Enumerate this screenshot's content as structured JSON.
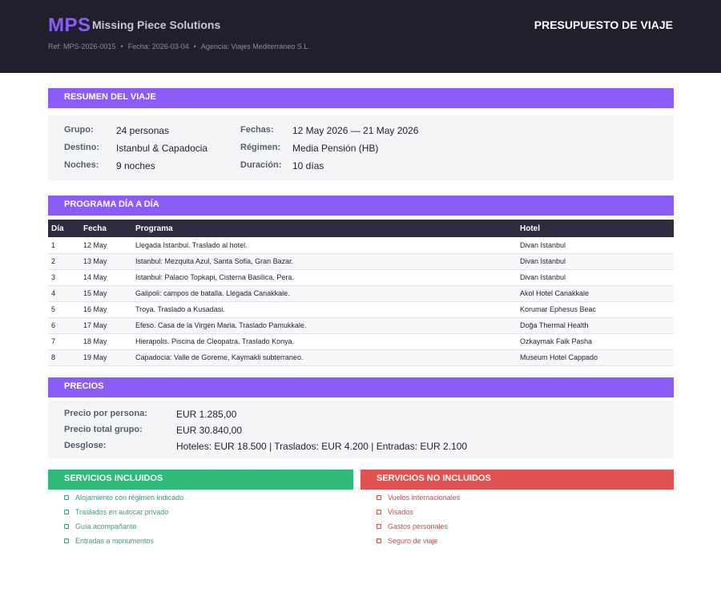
{
  "header": {
    "logo": "MPS",
    "company": "Missing Piece Solutions",
    "title": "PRESUPUESTO DE VIAJE",
    "ref": "Ref: MPS-2026-0015",
    "fecha": "Fecha: 2026-03-04",
    "agencia": "Agencia: Viajes Mediterráneo S.L.",
    "separator": "•"
  },
  "resumen": {
    "heading": "RESUMEN DEL VIAJE",
    "fields": [
      {
        "label": "Grupo:",
        "value": "24 personas"
      },
      {
        "label": "Destino:",
        "value": "Istanbul & Capadocia"
      },
      {
        "label": "Noches:",
        "value": "9 noches"
      },
      {
        "label": "Fechas:",
        "value": "12 May 2026 — 21 May 2026"
      },
      {
        "label": "Régimen:",
        "value": "Media Pensión (HB)"
      },
      {
        "label": "Duración:",
        "value": "10 días"
      }
    ]
  },
  "programa": {
    "heading": "PROGRAMA DÍA A DÍA",
    "columns": [
      "Día",
      "Fecha",
      "Programa",
      "Hotel"
    ],
    "rows": [
      [
        "1",
        "12 May",
        "Llegada Istanbul. Traslado al hotel.",
        "Divan Istanbul"
      ],
      [
        "2",
        "13 May",
        "Istanbul: Mezquita Azul, Santa Sofia, Gran Bazar.",
        "Divan Istanbul"
      ],
      [
        "3",
        "14 May",
        "Istanbul: Palacio Topkapi, Cisterna Basilica, Pera.",
        "Divan Istanbul"
      ],
      [
        "4",
        "15 May",
        "Galipoli: campos de batalla. Llegada Canakkale.",
        "Akol Hotel Canakkale"
      ],
      [
        "5",
        "16 May",
        "Troya. Traslado a Kusadasi.",
        "Korumar Ephesus Beac"
      ],
      [
        "6",
        "17 May",
        "Efeso. Casa de la Virgen Maria. Traslado Pamukkale.",
        "Doğa Thermal Health"
      ],
      [
        "7",
        "18 May",
        "Hierapolis. Piscina de Cleopatra. Traslado Konya.",
        "Ozkaymak Faik Pasha"
      ],
      [
        "8",
        "19 May",
        "Capadocia: Valle de Goreme, Kaymakli subterraneo.",
        "Museum Hotel Cappado"
      ]
    ]
  },
  "precios": {
    "heading": "PRECIOS",
    "fields": [
      {
        "label": "Precio por persona:",
        "value": "EUR 1.285,00"
      },
      {
        "label": "Precio total grupo:",
        "value": "EUR 30.840,00"
      },
      {
        "label": "Desglose:",
        "value": "Hoteles: EUR 18.500 | Traslados: EUR 4.200 | Entradas: EUR 2.100"
      }
    ]
  },
  "servicios": {
    "incluidos_heading": "SERVICIOS INCLUIDOS",
    "incluidos": [
      "Alojamiento con régimen indicado",
      "Traslados en autocar privado",
      "Guía acompañante",
      "Entradas a monumentos"
    ],
    "no_incluidos_heading": "SERVICIOS NO INCLUIDOS",
    "no_incluidos": [
      "Vuelos internacionales",
      "Visados",
      "Gastos personales",
      "Seguro de viaje"
    ]
  },
  "colors": {
    "accent": "#8b5cf6",
    "header_bg": "#221f2d",
    "table_header": "#2d2c40",
    "included": "#2ebb7a",
    "excluded": "#e05252"
  }
}
